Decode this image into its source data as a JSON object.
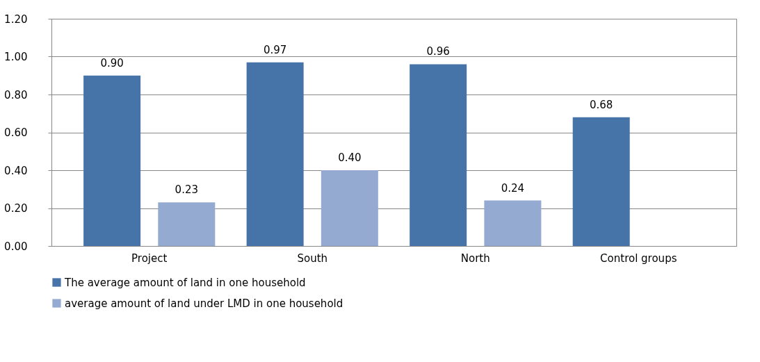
{
  "chart_data": {
    "type": "bar",
    "categories": [
      "Project",
      "South",
      "North",
      "Control groups"
    ],
    "series": [
      {
        "name": "The average amount of land in one household",
        "color": "#4673a8",
        "values": [
          0.9,
          0.97,
          0.96,
          0.68
        ],
        "value_labels": [
          "0.90",
          "0.97",
          "0.96",
          "0.68"
        ]
      },
      {
        "name": "average amount of land under LMD in one household",
        "color": "#95aad1",
        "values": [
          0.23,
          0.4,
          0.24,
          null
        ],
        "value_labels": [
          "0.23",
          "0.40",
          "0.24",
          null
        ]
      }
    ],
    "ylim": [
      0,
      1.2
    ],
    "yticks": [
      {
        "value": 0,
        "label": "0.00"
      },
      {
        "value": 0.2,
        "label": "0.20"
      },
      {
        "value": 0.4,
        "label": "0.40"
      },
      {
        "value": 0.6,
        "label": "0.60"
      },
      {
        "value": 0.8,
        "label": "0.80"
      },
      {
        "value": 1.0,
        "label": "1.00"
      },
      {
        "value": 1.2,
        "label": "1.20"
      }
    ],
    "grid": "y",
    "legend": "bottom"
  }
}
